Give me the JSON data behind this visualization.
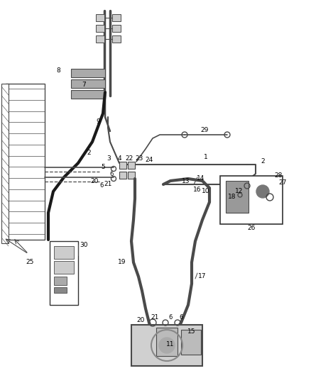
{
  "bg_color": "#ffffff",
  "line_color": "#4a4a4a",
  "label_color": "#000000",
  "figsize": [
    4.38,
    5.33
  ],
  "dpi": 100
}
